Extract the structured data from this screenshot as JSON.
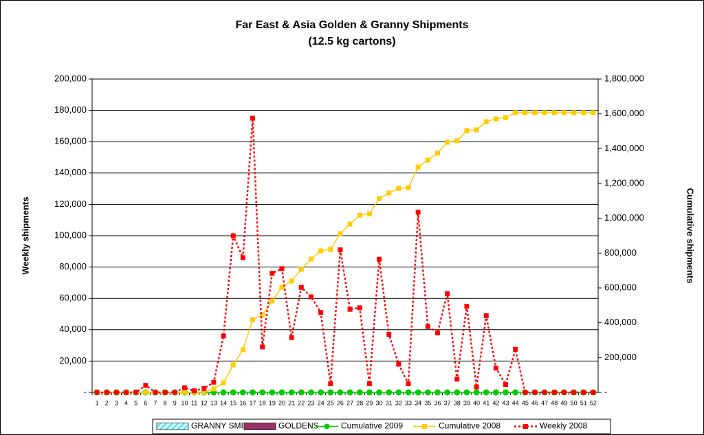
{
  "chart_data": {
    "type": "combo",
    "title": "Far East & Asia Golden & Granny Shipments",
    "subtitle": "(12.5 kg cartons)",
    "y_label": "Weekly shipments",
    "y2_label": "Cumulative shipments",
    "categories": [
      "1",
      "2",
      "3",
      "4",
      "5",
      "6",
      "7",
      "8",
      "9",
      "10",
      "11",
      "12",
      "13",
      "14",
      "15",
      "16",
      "17",
      "18",
      "19",
      "20",
      "21",
      "22",
      "23",
      "24",
      "25",
      "26",
      "27",
      "28",
      "29",
      "30",
      "31",
      "32",
      "33",
      "34",
      "35",
      "36",
      "37",
      "38",
      "39",
      "40",
      "41",
      "42",
      "43",
      "44",
      "45",
      "46",
      "47",
      "48",
      "49",
      "50",
      "51",
      "52"
    ],
    "ylim": [
      0,
      200000
    ],
    "yticks": [
      {
        "value": 0,
        "label": "-"
      },
      {
        "value": 20000,
        "label": "20,000"
      },
      {
        "value": 40000,
        "label": "40,000"
      },
      {
        "value": 60000,
        "label": "60,000"
      },
      {
        "value": 80000,
        "label": "80,000"
      },
      {
        "value": 100000,
        "label": "100,000"
      },
      {
        "value": 120000,
        "label": "120,000"
      },
      {
        "value": 140000,
        "label": "140,000"
      },
      {
        "value": 160000,
        "label": "160,000"
      },
      {
        "value": 180000,
        "label": "180,000"
      },
      {
        "value": 200000,
        "label": "200,000"
      }
    ],
    "y2lim": [
      0,
      1800000
    ],
    "y2ticks": [
      {
        "value": 0,
        "label": "-"
      },
      {
        "value": 200000,
        "label": "200,000"
      },
      {
        "value": 400000,
        "label": "400,000"
      },
      {
        "value": 600000,
        "label": "600,000"
      },
      {
        "value": 800000,
        "label": "800,000"
      },
      {
        "value": 1000000,
        "label": "1,000,000"
      },
      {
        "value": 1200000,
        "label": "1,200,000"
      },
      {
        "value": 1400000,
        "label": "1,400,000"
      },
      {
        "value": 1600000,
        "label": "1,600,000"
      },
      {
        "value": 1800000,
        "label": "1,800,000"
      }
    ],
    "grid": true,
    "legend": "bottom",
    "series": [
      {
        "name": "GRANNY SMITH",
        "type": "bar",
        "color": "#33ccff",
        "values": [
          0,
          0,
          0,
          0,
          0,
          0,
          0,
          0,
          0,
          0,
          0,
          0,
          0,
          0,
          0,
          0,
          0,
          0,
          0,
          0,
          0,
          0,
          0,
          0,
          0,
          0,
          0,
          0,
          0,
          0,
          0,
          0,
          0,
          0,
          0,
          0,
          0,
          0,
          0,
          0,
          0,
          0,
          0,
          0,
          0,
          0,
          0,
          0,
          0,
          0,
          0,
          0
        ]
      },
      {
        "name": "GOLDENS",
        "type": "bar",
        "color": "#993366",
        "values": [
          0,
          0,
          0,
          0,
          0,
          0,
          0,
          0,
          0,
          0,
          0,
          0,
          0,
          0,
          0,
          0,
          0,
          0,
          0,
          0,
          0,
          0,
          0,
          0,
          0,
          0,
          0,
          0,
          0,
          0,
          0,
          0,
          0,
          0,
          0,
          0,
          0,
          0,
          0,
          0,
          0,
          0,
          0,
          0,
          0,
          0,
          0,
          0,
          0,
          0,
          0,
          0
        ]
      },
      {
        "name": "Cumulative 2009",
        "type": "line",
        "axis": "y2",
        "color": "#00cc00",
        "marker": "circle",
        "values": [
          0,
          0,
          0,
          0,
          0,
          0,
          0,
          0,
          0,
          0,
          0,
          0,
          0,
          0,
          0,
          0,
          0,
          0,
          0,
          0,
          0,
          0,
          0,
          0,
          0,
          0,
          0,
          0,
          0,
          0,
          0,
          0,
          0,
          0,
          0,
          0,
          0,
          0,
          0,
          0,
          0,
          0,
          0,
          0,
          0,
          0,
          0,
          0,
          0,
          0,
          0,
          0
        ]
      },
      {
        "name": "Cumulative 2008",
        "type": "line",
        "axis": "y2",
        "color": "#ffcc00",
        "marker": "square",
        "values": [
          0,
          0,
          0,
          0,
          0,
          0,
          0,
          0,
          0,
          0,
          0,
          0,
          20000,
          55000,
          158000,
          245000,
          418000,
          446000,
          525000,
          604000,
          640000,
          707000,
          766000,
          813000,
          821000,
          912000,
          967000,
          1018000,
          1026000,
          1113000,
          1145000,
          1172000,
          1176000,
          1295000,
          1334000,
          1374000,
          1437000,
          1445000,
          1504000,
          1508000,
          1555000,
          1571000,
          1579000,
          1607000,
          1607000,
          1607000,
          1607000,
          1607000,
          1607000,
          1607000,
          1607000,
          1607000
        ]
      },
      {
        "name": "Weekly 2008",
        "type": "line",
        "dashed": true,
        "color": "#ff0000",
        "marker": "square",
        "values": [
          0,
          0,
          0,
          0,
          0,
          4500,
          0,
          0,
          0,
          3000,
          1000,
          2500,
          6500,
          36000,
          100000,
          86000,
          175000,
          29000,
          76000,
          79000,
          35000,
          67000,
          61000,
          51000,
          5500,
          91000,
          53000,
          54000,
          5500,
          85000,
          37000,
          18000,
          5500,
          115000,
          42000,
          38000,
          63000,
          8500,
          55000,
          3500,
          49000,
          15500,
          5000,
          27500,
          0,
          0,
          0,
          0,
          0,
          0,
          0,
          0
        ]
      }
    ]
  }
}
